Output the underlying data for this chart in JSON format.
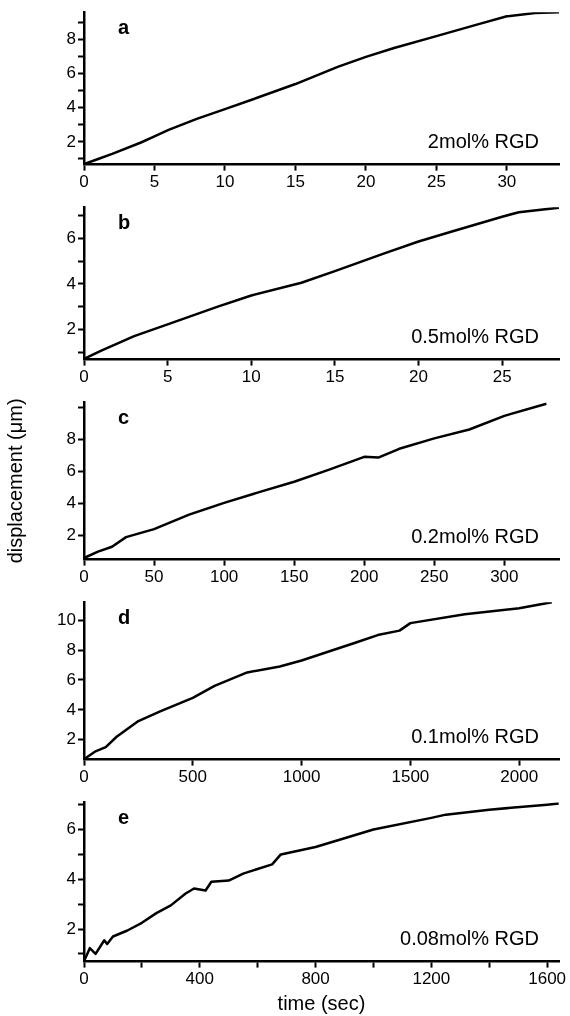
{
  "chart_data": [
    {
      "type": "line",
      "title": "a",
      "annotations": [
        "2mol% RGD"
      ],
      "color": "#000000",
      "marker": "none",
      "x": [
        0,
        1,
        2,
        4,
        5,
        6,
        8,
        10,
        12,
        15,
        18,
        20,
        22,
        25,
        28,
        30,
        32,
        33.7
      ],
      "values": [
        0.7,
        1.0,
        1.3,
        1.95,
        2.33,
        2.7,
        3.35,
        3.92,
        4.5,
        5.39,
        6.4,
        6.98,
        7.5,
        8.2,
        8.9,
        9.36,
        9.55,
        9.6
      ],
      "xlim": [
        0,
        33.7
      ],
      "ylim": [
        0.67,
        9.6
      ],
      "xticks": [
        0,
        5,
        10,
        15,
        20,
        25,
        30
      ],
      "yticks": [
        {
          "value": 1,
          "label": null
        },
        2,
        {
          "value": 3,
          "label": null
        },
        4,
        {
          "value": 5,
          "label": null
        },
        6,
        {
          "value": 7,
          "label": null
        },
        8,
        {
          "value": 9,
          "label": null
        }
      ]
    },
    {
      "type": "line",
      "title": "b",
      "annotations": [
        "0.5mol% RGD"
      ],
      "color": "#000000",
      "marker": "none",
      "x": [
        0,
        1,
        3,
        5,
        8,
        10,
        13,
        15,
        18,
        20,
        22,
        25,
        26,
        28.4
      ],
      "values": [
        0.7,
        1.05,
        1.7,
        2.22,
        3.0,
        3.49,
        4.05,
        4.56,
        5.35,
        5.86,
        6.3,
        6.95,
        7.15,
        7.35
      ],
      "xlim": [
        0,
        28.4
      ],
      "ylim": [
        0.67,
        7.37
      ],
      "xticks": [
        0,
        5,
        10,
        15,
        20,
        25
      ],
      "yticks": [
        {
          "value": 1,
          "label": null
        },
        2,
        {
          "value": 3,
          "label": null
        },
        4,
        {
          "value": 5,
          "label": null
        },
        6,
        {
          "value": 7,
          "label": null
        }
      ]
    },
    {
      "type": "line",
      "title": "c",
      "annotations": [
        "0.2mol% RGD"
      ],
      "ylabel": "displacement (μm)",
      "color": "#000000",
      "marker": "none",
      "x": [
        0,
        10,
        20,
        30,
        50,
        75,
        100,
        125,
        150,
        175,
        200,
        210,
        225,
        250,
        275,
        300,
        330
      ],
      "values": [
        0.6,
        1.0,
        1.3,
        1.9,
        2.4,
        3.3,
        4.03,
        4.7,
        5.35,
        6.1,
        6.9,
        6.85,
        7.4,
        8.05,
        8.6,
        9.45,
        10.2
      ],
      "xlim": [
        0,
        339
      ],
      "ylim": [
        0.5,
        10.3
      ],
      "xticks": [
        0,
        50,
        100,
        150,
        200,
        250,
        300
      ],
      "yticks": [
        2,
        4,
        6,
        8,
        {
          "value": 10,
          "label": null
        }
      ]
    },
    {
      "type": "line",
      "title": "d",
      "annotations": [
        "0.1mol% RGD"
      ],
      "color": "#000000",
      "marker": "none",
      "x": [
        0,
        50,
        100,
        150,
        250,
        350,
        500,
        600,
        750,
        900,
        1000,
        1250,
        1350,
        1450,
        1500,
        1750,
        2000,
        2150
      ],
      "values": [
        0.7,
        1.2,
        1.5,
        2.2,
        3.25,
        3.9,
        4.8,
        5.6,
        6.5,
        6.9,
        7.3,
        8.5,
        9.0,
        9.3,
        9.8,
        10.4,
        10.8,
        11.2
      ],
      "xlim": [
        0,
        2183
      ],
      "ylim": [
        0.67,
        11.2
      ],
      "xticks": [
        0,
        500,
        1000,
        1500,
        2000
      ],
      "yticks": [
        2,
        4,
        6,
        8,
        10
      ]
    },
    {
      "type": "line",
      "title": "e",
      "annotations": [
        "0.08mol% RGD"
      ],
      "xlabel": "time (sec)",
      "color": "#000000",
      "marker": "none",
      "x": [
        0,
        20,
        40,
        70,
        80,
        100,
        150,
        200,
        250,
        300,
        350,
        380,
        420,
        440,
        500,
        550,
        650,
        680,
        800,
        1000,
        1200,
        1250,
        1400,
        1600,
        1640
      ],
      "values": [
        0.7,
        1.23,
        1.0,
        1.55,
        1.4,
        1.7,
        1.94,
        2.25,
        2.64,
        2.95,
        3.42,
        3.63,
        3.55,
        3.9,
        3.95,
        4.23,
        4.6,
        5.0,
        5.3,
        6.0,
        6.47,
        6.6,
        6.8,
        7.0,
        7.05
      ],
      "xlim": [
        0,
        1641
      ],
      "ylim": [
        0.69,
        7.1
      ],
      "xticks": [
        0,
        {
          "value": 200,
          "label": null
        },
        400,
        {
          "value": 600,
          "label": null
        },
        800,
        {
          "value": 1000,
          "label": null
        },
        1200,
        {
          "value": 1400,
          "label": null
        },
        1600
      ],
      "yticks": [
        {
          "value": 1,
          "label": null
        },
        2,
        {
          "value": 3,
          "label": null
        },
        4,
        {
          "value": 5,
          "label": null
        },
        6,
        {
          "value": 7,
          "label": null
        }
      ]
    }
  ]
}
